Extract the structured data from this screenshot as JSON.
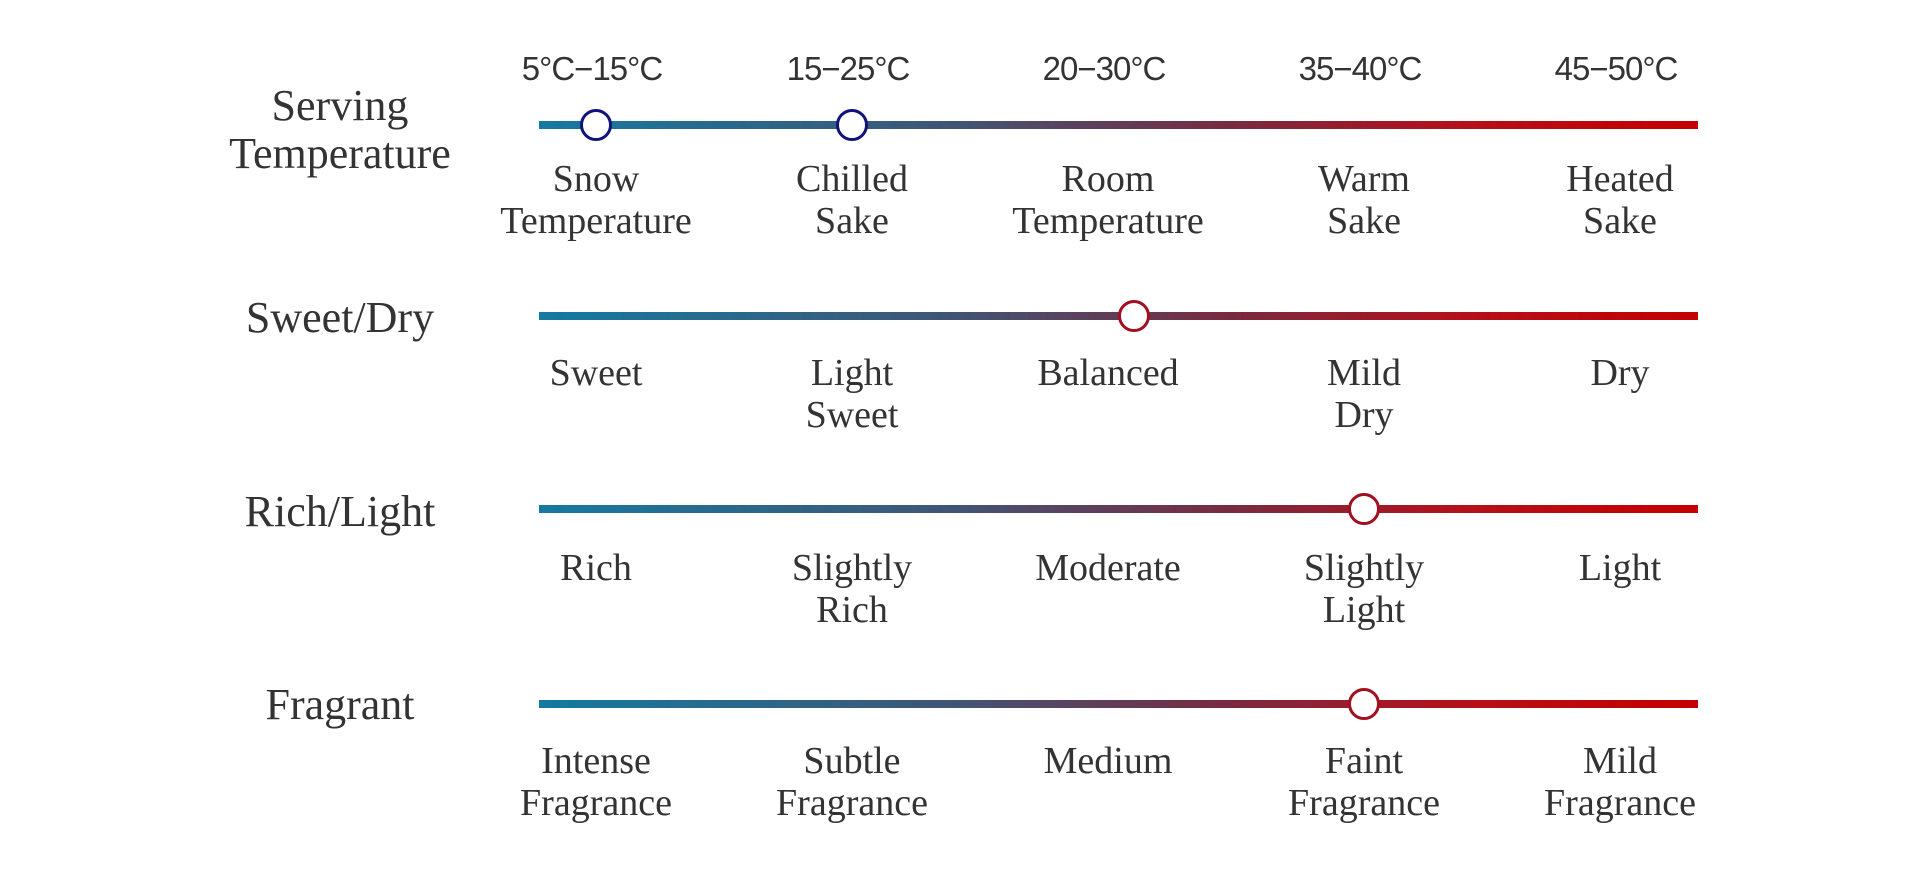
{
  "colors": {
    "start": "#157aa0",
    "end": "#c40000",
    "marker_cold": "#12137a",
    "marker_warm": "#a01020"
  },
  "rows": [
    {
      "label": [
        "Serving",
        "Temperature"
      ],
      "top_labels": [
        "5°C−15°C",
        "15−25°C",
        "20−30°C",
        "35−40°C",
        "45−50°C"
      ],
      "labels": [
        [
          "Snow",
          "Temperature"
        ],
        [
          "Chilled",
          "Sake"
        ],
        [
          "Room",
          "Temperature"
        ],
        [
          "Warm",
          "Sake"
        ],
        [
          "Heated",
          "Sake"
        ]
      ],
      "markers": [
        0,
        1
      ],
      "marker_style": "cold"
    },
    {
      "label": [
        "Sweet/Dry"
      ],
      "labels": [
        [
          "Sweet"
        ],
        [
          "Light",
          "Sweet"
        ],
        [
          "Balanced"
        ],
        [
          "Mild",
          "Dry"
        ],
        [
          "Dry"
        ]
      ],
      "markers": [
        2.1
      ],
      "marker_style": "warm"
    },
    {
      "label": [
        "Rich/Light"
      ],
      "labels": [
        [
          "Rich"
        ],
        [
          "Slightly",
          "Rich"
        ],
        [
          "Moderate"
        ],
        [
          "Slightly",
          "Light"
        ],
        [
          "Light"
        ]
      ],
      "markers": [
        3
      ],
      "marker_style": "warm"
    },
    {
      "label": [
        "Fragrant"
      ],
      "labels": [
        [
          "Intense",
          "Fragrance"
        ],
        [
          "Subtle",
          "Fragrance"
        ],
        [
          "Medium"
        ],
        [
          "Faint",
          "Fragrance"
        ],
        [
          "Mild",
          "Fragrance"
        ]
      ],
      "markers": [
        3
      ],
      "marker_style": "warm"
    }
  ]
}
